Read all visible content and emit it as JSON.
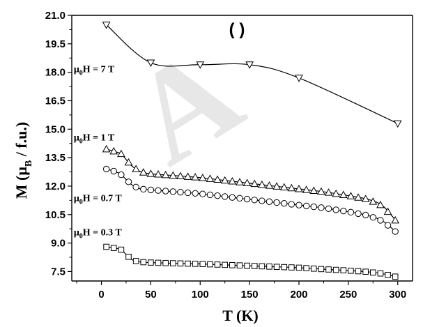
{
  "chart_data": {
    "type": "line",
    "panel_label": "(  )",
    "watermark": "A",
    "xlabel": "T (K)",
    "ylabel": {
      "base": "M (μ",
      "sub": "B",
      "rest": " / f.u.)"
    },
    "xlim": [
      -30,
      315
    ],
    "ylim": [
      7.0,
      21.0
    ],
    "xticks": [
      0,
      50,
      100,
      150,
      200,
      250,
      300
    ],
    "yticks": [
      7.5,
      9.0,
      10.5,
      12.0,
      13.5,
      15.0,
      16.5,
      18.0,
      19.5,
      21.0
    ],
    "ytick_labels": [
      "7.5",
      "9.0",
      "10.5",
      "12.0",
      "13.5",
      "15.0",
      "16.5",
      "18.0",
      "19.5",
      "21.0"
    ],
    "grid": false,
    "series": [
      {
        "name": {
          "pre": "μ",
          "sub": "0",
          "post": "H = 7 T"
        },
        "marker": "triangle-down",
        "label_pos": [
          -28,
          18.0
        ],
        "points": [
          [
            5,
            20.5
          ],
          [
            50,
            18.5
          ],
          [
            100,
            18.4
          ],
          [
            150,
            18.4
          ],
          [
            200,
            17.7
          ],
          [
            300,
            15.3
          ]
        ]
      },
      {
        "name": {
          "pre": "μ",
          "sub": "0",
          "post": "H = 1 T"
        },
        "marker": "triangle-up",
        "label_pos": [
          -28,
          14.4
        ],
        "points": [
          [
            5,
            13.95
          ],
          [
            15,
            13.8
          ],
          [
            20,
            13.7
          ],
          [
            25,
            13.4
          ],
          [
            30,
            13.1
          ],
          [
            35,
            12.9
          ],
          [
            40,
            12.75
          ],
          [
            50,
            12.65
          ],
          [
            75,
            12.55
          ],
          [
            100,
            12.45
          ],
          [
            125,
            12.3
          ],
          [
            150,
            12.15
          ],
          [
            175,
            12.0
          ],
          [
            200,
            11.85
          ],
          [
            225,
            11.7
          ],
          [
            250,
            11.5
          ],
          [
            270,
            11.3
          ],
          [
            285,
            10.95
          ],
          [
            300,
            10.05
          ]
        ]
      },
      {
        "name": {
          "pre": "μ",
          "sub": "0",
          "post": "H = 0.7 T"
        },
        "marker": "circle",
        "label_pos": [
          -28,
          11.2
        ],
        "points": [
          [
            5,
            12.9
          ],
          [
            15,
            12.75
          ],
          [
            20,
            12.6
          ],
          [
            25,
            12.35
          ],
          [
            30,
            12.1
          ],
          [
            35,
            11.95
          ],
          [
            40,
            11.85
          ],
          [
            50,
            11.8
          ],
          [
            75,
            11.7
          ],
          [
            100,
            11.6
          ],
          [
            125,
            11.45
          ],
          [
            150,
            11.3
          ],
          [
            175,
            11.15
          ],
          [
            200,
            11.0
          ],
          [
            225,
            10.85
          ],
          [
            250,
            10.65
          ],
          [
            270,
            10.45
          ],
          [
            285,
            10.15
          ],
          [
            300,
            9.5
          ]
        ]
      },
      {
        "name": {
          "pre": "μ",
          "sub": "0",
          "post": "H = 0.3 T"
        },
        "marker": "square",
        "label_pos": [
          -28,
          9.4
        ],
        "points": [
          [
            5,
            8.8
          ],
          [
            15,
            8.72
          ],
          [
            20,
            8.65
          ],
          [
            25,
            8.4
          ],
          [
            30,
            8.15
          ],
          [
            35,
            8.05
          ],
          [
            40,
            8.0
          ],
          [
            50,
            7.97
          ],
          [
            75,
            7.93
          ],
          [
            100,
            7.9
          ],
          [
            125,
            7.85
          ],
          [
            150,
            7.8
          ],
          [
            175,
            7.75
          ],
          [
            200,
            7.7
          ],
          [
            225,
            7.62
          ],
          [
            250,
            7.55
          ],
          [
            270,
            7.48
          ],
          [
            285,
            7.38
          ],
          [
            300,
            7.2
          ]
        ]
      }
    ]
  }
}
